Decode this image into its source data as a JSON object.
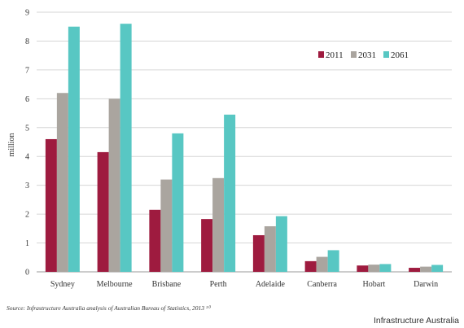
{
  "chart_data": {
    "type": "bar",
    "categories": [
      "Sydney",
      "Melbourne",
      "Brisbane",
      "Perth",
      "Adelaide",
      "Canberra",
      "Hobart",
      "Darwin"
    ],
    "series": [
      {
        "name": "2011",
        "color": "#9e1b3f",
        "values": [
          4.6,
          4.15,
          2.15,
          1.83,
          1.27,
          0.37,
          0.22,
          0.14
        ]
      },
      {
        "name": "2031",
        "color": "#aaa59f",
        "values": [
          6.2,
          6.0,
          3.2,
          3.25,
          1.58,
          0.52,
          0.25,
          0.18
        ]
      },
      {
        "name": "2061",
        "color": "#58c7c3",
        "values": [
          8.5,
          8.6,
          4.8,
          5.45,
          1.93,
          0.75,
          0.27,
          0.24
        ]
      }
    ],
    "ylabel": "million",
    "ylim": [
      0,
      9
    ],
    "yticks": [
      "0",
      "1",
      "2",
      "3",
      "4",
      "5",
      "6",
      "7",
      "8",
      "9"
    ],
    "grid": true,
    "legend": "top-right"
  },
  "footer": {
    "source": "Source: Infrastructure Australia analysis of Australian Bureau of Statistics, 2013 ¹⁰",
    "credit": "Infrastructure Australia"
  }
}
